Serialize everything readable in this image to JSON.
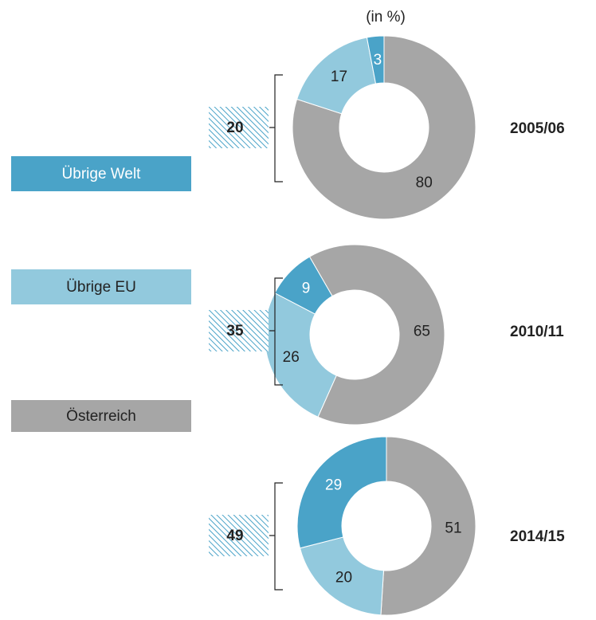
{
  "chart_data": [
    {
      "type": "donut",
      "subtitle": "(in %)",
      "title": "2005/06",
      "categories": [
        "Übrige Welt",
        "Übrige EU",
        "Österreich"
      ],
      "colors": [
        "#4aa3c8",
        "#92c9dd",
        "#a6a6a6"
      ],
      "values": [
        3,
        17,
        80
      ],
      "total": 20
    },
    {
      "type": "donut",
      "title": "2010/11",
      "categories": [
        "Übrige Welt",
        "Übrige EU",
        "Österreich"
      ],
      "colors": [
        "#4aa3c8",
        "#92c9dd",
        "#a6a6a6"
      ],
      "values": [
        9,
        26,
        65
      ],
      "total": 35
    },
    {
      "type": "donut",
      "title": "2014/15",
      "categories": [
        "Übrige Welt",
        "Übrige EU",
        "Österreich"
      ],
      "colors": [
        "#4aa3c8",
        "#92c9dd",
        "#a6a6a6"
      ],
      "values": [
        29,
        20,
        51
      ],
      "total": 49
    }
  ]
}
